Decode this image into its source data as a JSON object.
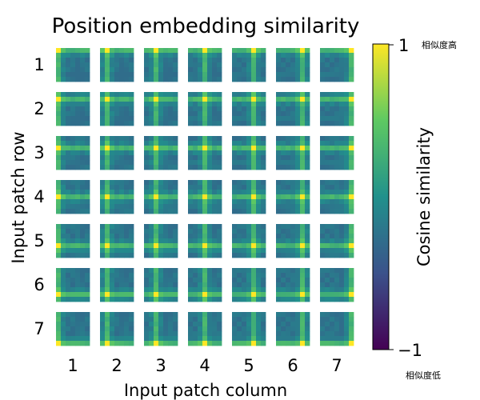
{
  "chart_data": {
    "type": "heatmap",
    "title": "Position embedding similarity",
    "xlabel": "Input patch column",
    "ylabel": "Input patch row",
    "row_labels": [
      "1",
      "2",
      "3",
      "4",
      "5",
      "6",
      "7"
    ],
    "col_labels": [
      "1",
      "2",
      "3",
      "4",
      "5",
      "6",
      "7"
    ],
    "patch_grid": [
      7,
      7
    ],
    "colorbar": {
      "label": "Cosine similarity",
      "min": -1,
      "max": 1,
      "min_label": "−1",
      "max_label": "1",
      "high_note": "相似度高",
      "low_note": "相似度低",
      "colormap": "viridis",
      "colors": [
        "#440154",
        "#3b528b",
        "#21918c",
        "#5ec962",
        "#fde725"
      ]
    },
    "grid": false
  }
}
